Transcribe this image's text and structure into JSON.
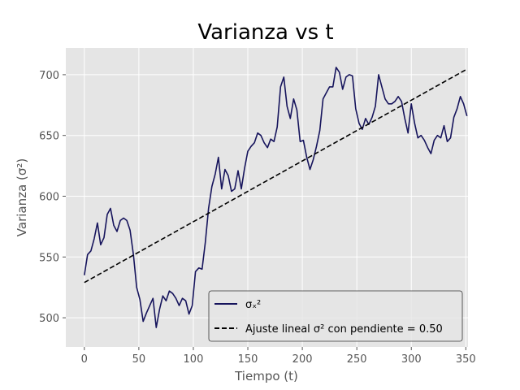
{
  "chart_data": {
    "type": "line",
    "title": "Varianza vs t",
    "xlabel": "Tiempo (t)",
    "ylabel": "Varianza (σ²)",
    "xlim": [
      -17,
      352
    ],
    "ylim": [
      476,
      722
    ],
    "xticks": [
      0,
      50,
      100,
      150,
      200,
      250,
      300,
      350
    ],
    "yticks": [
      500,
      550,
      600,
      650,
      700
    ],
    "grid": true,
    "legend_placement": "lower-right",
    "colors": {
      "background": "#e5e5e5",
      "grid": "#ffffff",
      "series": "#16145c",
      "fit": "#000000"
    },
    "series": [
      {
        "name": "σₓ²",
        "style": "solid",
        "x": [
          0,
          3,
          6,
          9,
          12,
          15,
          18,
          21,
          24,
          27,
          30,
          33,
          36,
          39,
          42,
          45,
          48,
          51,
          54,
          57,
          60,
          63,
          66,
          69,
          72,
          75,
          78,
          81,
          84,
          87,
          90,
          93,
          96,
          99,
          102,
          105,
          108,
          111,
          114,
          117,
          120,
          123,
          126,
          129,
          132,
          135,
          138,
          141,
          144,
          147,
          150,
          153,
          156,
          159,
          162,
          165,
          168,
          171,
          174,
          177,
          180,
          183,
          186,
          189,
          192,
          195,
          198,
          201,
          204,
          207,
          210,
          213,
          216,
          219,
          222,
          225,
          228,
          231,
          234,
          237,
          240,
          243,
          246,
          249,
          252,
          255,
          258,
          261,
          264,
          267,
          270,
          273,
          276,
          279,
          282,
          285,
          288,
          291,
          294,
          297,
          300,
          303,
          306,
          309,
          312,
          315,
          318,
          321,
          324,
          327,
          330,
          333,
          336,
          339,
          342,
          345,
          348,
          351
        ],
        "values": [
          535,
          552,
          555,
          565,
          578,
          560,
          566,
          585,
          590,
          576,
          571,
          580,
          582,
          580,
          572,
          552,
          525,
          515,
          497,
          504,
          510,
          516,
          492,
          507,
          518,
          514,
          522,
          520,
          516,
          510,
          516,
          514,
          503,
          510,
          538,
          541,
          540,
          562,
          590,
          608,
          618,
          632,
          606,
          622,
          617,
          604,
          606,
          621,
          606,
          623,
          637,
          641,
          644,
          652,
          650,
          644,
          640,
          647,
          645,
          657,
          690,
          698,
          674,
          664,
          680,
          671,
          645,
          646,
          632,
          622,
          630,
          641,
          654,
          680,
          685,
          690,
          690,
          706,
          702,
          688,
          698,
          700,
          699,
          672,
          660,
          655,
          664,
          659,
          665,
          674,
          700,
          690,
          680,
          676,
          676,
          678,
          682,
          678,
          664,
          652,
          676,
          660,
          648,
          650,
          646,
          640,
          635,
          646,
          650,
          648,
          658,
          645,
          648,
          665,
          672,
          682,
          676,
          666
        ]
      },
      {
        "name": "Ajuste lineal σ² con pendiente = 0.50",
        "style": "dashed",
        "slope": 0.5,
        "intercept": 529,
        "x": [
          0,
          350
        ],
        "values": [
          529,
          704
        ]
      }
    ]
  }
}
